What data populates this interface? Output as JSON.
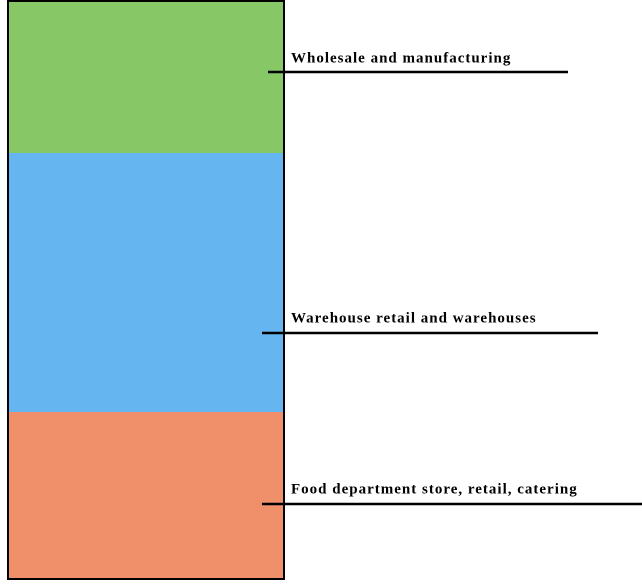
{
  "layers": [
    {
      "label": "Wholesale and manufacturing"
    },
    {
      "label": "Warehouse retail and warehouses"
    },
    {
      "label": "Food department store, retail, catering"
    }
  ]
}
